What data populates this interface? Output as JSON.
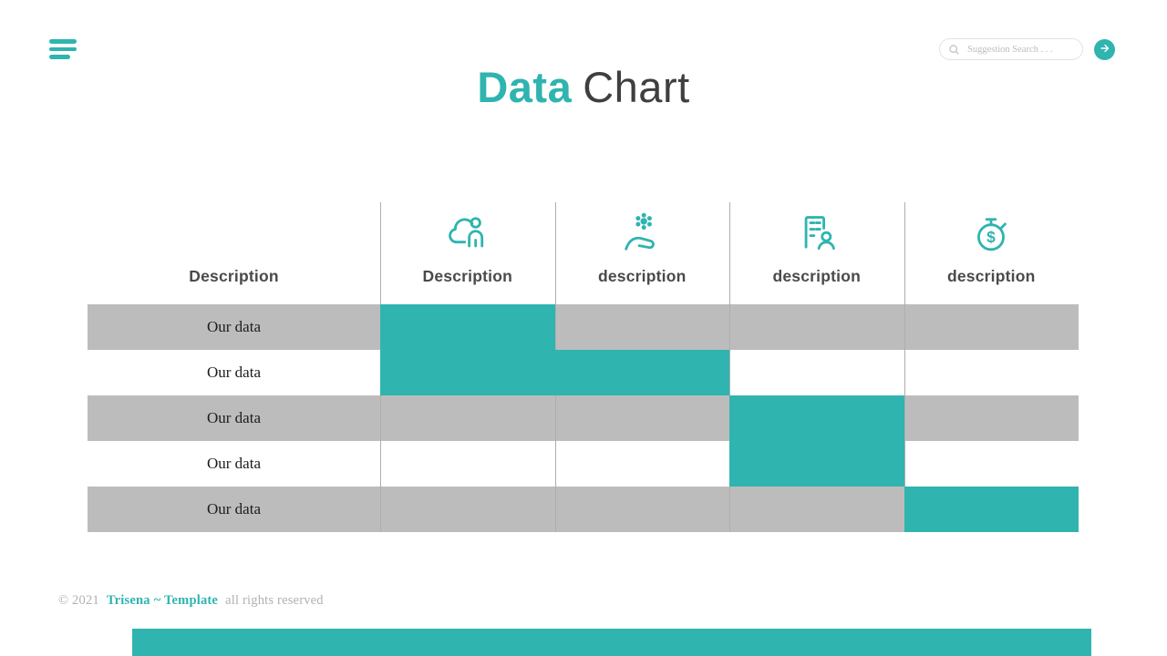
{
  "colors": {
    "accent": "#2fb4b0",
    "row_stripe": "#bdbcbc",
    "title_dark": "#3f3f3f"
  },
  "menu": {
    "icon": "hamburger-icon"
  },
  "search": {
    "placeholder": "Suggestion Search . . .",
    "icon": "magnifier-icon",
    "button_icon": "arrow-right-icon"
  },
  "title": {
    "accent": "Data",
    "rest": "Chart"
  },
  "chart_data": {
    "type": "table",
    "title": "Data Chart",
    "columns": [
      {
        "label": "Description",
        "icon": null
      },
      {
        "label": "Description",
        "icon": "cloud-user-icon"
      },
      {
        "label": "description",
        "icon": "hand-flower-icon"
      },
      {
        "label": "description",
        "icon": "building-user-icon"
      },
      {
        "label": "description",
        "icon": "stopwatch-dollar-icon"
      }
    ],
    "rows": [
      {
        "label": "Our data",
        "highlighted_columns": [
          1
        ]
      },
      {
        "label": "Our data",
        "highlighted_columns": [
          1,
          2
        ]
      },
      {
        "label": "Our data",
        "highlighted_columns": [
          3
        ]
      },
      {
        "label": "Our data",
        "highlighted_columns": [
          3
        ]
      },
      {
        "label": "Our data",
        "highlighted_columns": [
          4
        ]
      }
    ],
    "layout_hints": "rows 1,3,5 have gray stripe background; teal cells mark highlighted data blocks"
  },
  "footer": {
    "copyright": "© 2021",
    "brand": "Trisena",
    "brand_suffix": "~ Template",
    "rights": "all rights reserved"
  }
}
